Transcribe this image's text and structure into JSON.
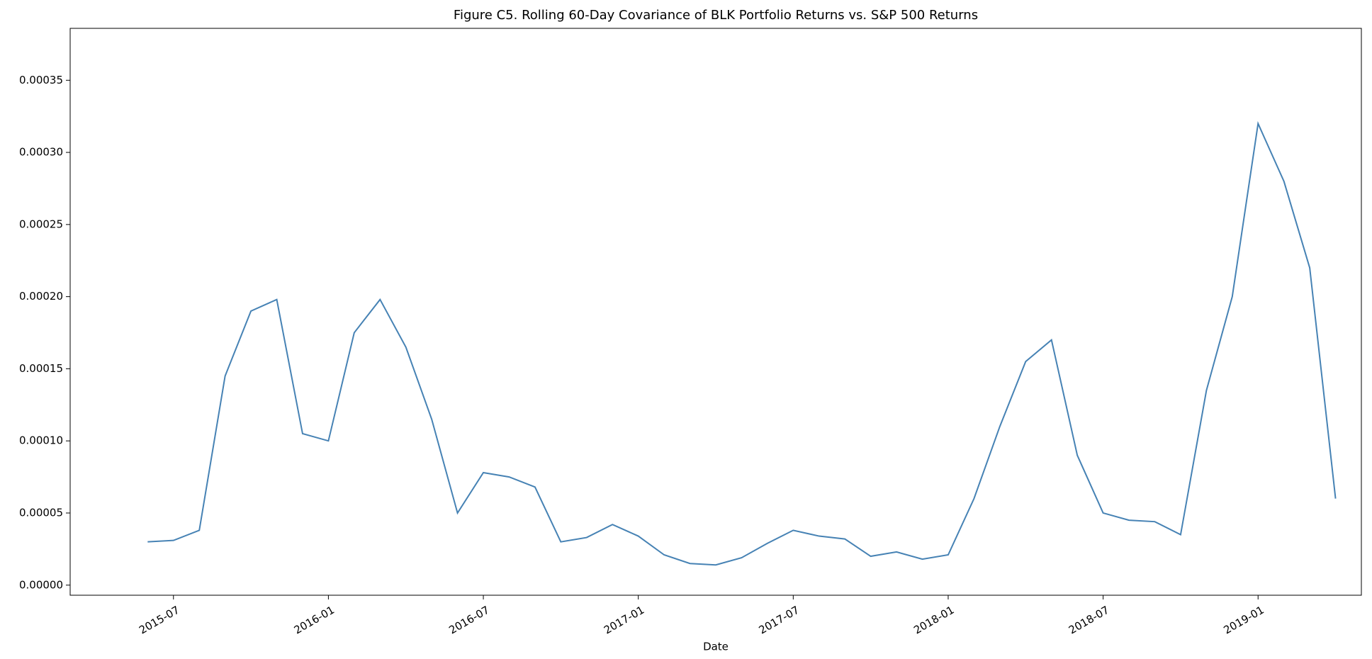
{
  "chart_data": {
    "type": "line",
    "title": "Figure C5. Rolling 60-Day Covariance of BLK Portfolio Returns vs. S&P 500 Returns",
    "xlabel": "Date",
    "color": "#4682b4",
    "grid": false,
    "x": [
      "2015-06",
      "2015-07",
      "2015-08",
      "2015-09",
      "2015-10",
      "2015-11",
      "2015-12",
      "2016-01",
      "2016-02",
      "2016-03",
      "2016-04",
      "2016-05",
      "2016-06",
      "2016-07",
      "2016-08",
      "2016-09",
      "2016-10",
      "2016-11",
      "2016-12",
      "2017-01",
      "2017-02",
      "2017-03",
      "2017-04",
      "2017-05",
      "2017-06",
      "2017-07",
      "2017-08",
      "2017-09",
      "2017-10",
      "2017-11",
      "2017-12",
      "2018-01",
      "2018-02",
      "2018-03",
      "2018-04",
      "2018-05",
      "2018-06",
      "2018-07",
      "2018-08",
      "2018-09",
      "2018-10",
      "2018-11",
      "2018-12",
      "2019-01",
      "2019-02",
      "2019-03",
      "2019-04"
    ],
    "values": [
      3e-05,
      3.1e-05,
      3.8e-05,
      0.000145,
      0.00019,
      0.000198,
      0.000105,
      0.0001,
      0.000175,
      0.000198,
      0.000165,
      0.000115,
      5e-05,
      7.8e-05,
      7.5e-05,
      6.8e-05,
      3e-05,
      3.3e-05,
      4.2e-05,
      3.4e-05,
      2.1e-05,
      1.5e-05,
      1.4e-05,
      1.9e-05,
      2.9e-05,
      3.8e-05,
      3.4e-05,
      3.2e-05,
      2e-05,
      2.3e-05,
      1.8e-05,
      2.1e-05,
      6e-05,
      0.00011,
      0.000155,
      0.00017,
      9e-05,
      5e-05,
      4.5e-05,
      4.4e-05,
      3.5e-05,
      0.000135,
      0.0002,
      0.00032,
      0.00028,
      0.00022,
      6e-05
    ],
    "xlim": [
      "2015-03",
      "2019-05"
    ],
    "xticks": [
      "2015-07",
      "2016-01",
      "2016-07",
      "2017-01",
      "2017-07",
      "2018-01",
      "2018-07",
      "2019-01"
    ],
    "ylim": [
      -7e-06,
      0.000386
    ],
    "yticks": [
      {
        "value": 0,
        "label": "0.00000"
      },
      {
        "value": 5e-05,
        "label": "0.00005"
      },
      {
        "value": 0.0001,
        "label": "0.00010"
      },
      {
        "value": 0.00015,
        "label": "0.00015"
      },
      {
        "value": 0.0002,
        "label": "0.00020"
      },
      {
        "value": 0.00025,
        "label": "0.00025"
      },
      {
        "value": 0.0003,
        "label": "0.00030"
      },
      {
        "value": 0.00035,
        "label": "0.00035"
      }
    ]
  }
}
